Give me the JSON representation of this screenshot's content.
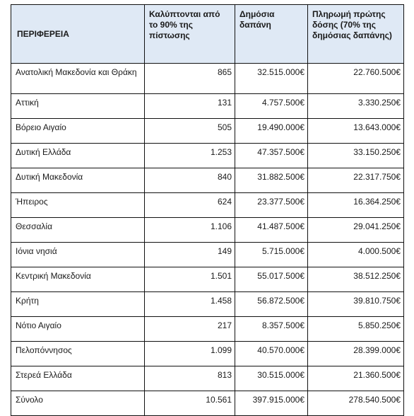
{
  "table": {
    "headers": [
      "ΠΕΡΙΦΕΡΕΙΑ",
      "Καλύπτονται από το 90% της πίστωσης",
      "Δημόσια δαπάνη",
      "Πληρωμή πρώτης δόσης (70% της δημόσιας δαπάνης)"
    ],
    "rows": [
      [
        "Ανατολική Μακεδονία και Θράκη",
        "865",
        "32.515.000€",
        "22.760.500€"
      ],
      [
        "Αττική",
        "131",
        "4.757.500€",
        "3.330.250€"
      ],
      [
        "Βόρειο Αιγαίο",
        "505",
        "19.490.000€",
        "13.643.000€"
      ],
      [
        "Δυτική Ελλάδα",
        "1.253",
        "47.357.500€",
        "33.150.250€"
      ],
      [
        "Δυτική Μακεδονία",
        "840",
        "31.882.500€",
        "22.317.750€"
      ],
      [
        "Ήπειρος",
        "624",
        "23.377.500€",
        "16.364.250€"
      ],
      [
        "Θεσσαλία",
        "1.106",
        "41.487.500€",
        "29.041.250€"
      ],
      [
        "Ιόνια νησιά",
        "149",
        "5.715.000€",
        "4.000.500€"
      ],
      [
        "Κεντρική Μακεδονία",
        "1.501",
        "55.017.500€",
        "38.512.250€"
      ],
      [
        "Κρήτη",
        "1.458",
        "56.872.500€",
        "39.810.750€"
      ],
      [
        "Νότιο Αιγαίο",
        "217",
        "8.357.500€",
        "5.850.250€"
      ],
      [
        "Πελοπόννησος",
        "1.099",
        "40.570.000€",
        "28.399.000€"
      ],
      [
        "Στερεά Ελλάδα",
        "813",
        "30.515.000€",
        "21.360.500€"
      ],
      [
        "Σύνολο",
        "10.561",
        "397.915.000€",
        "278.540.500€"
      ]
    ]
  }
}
